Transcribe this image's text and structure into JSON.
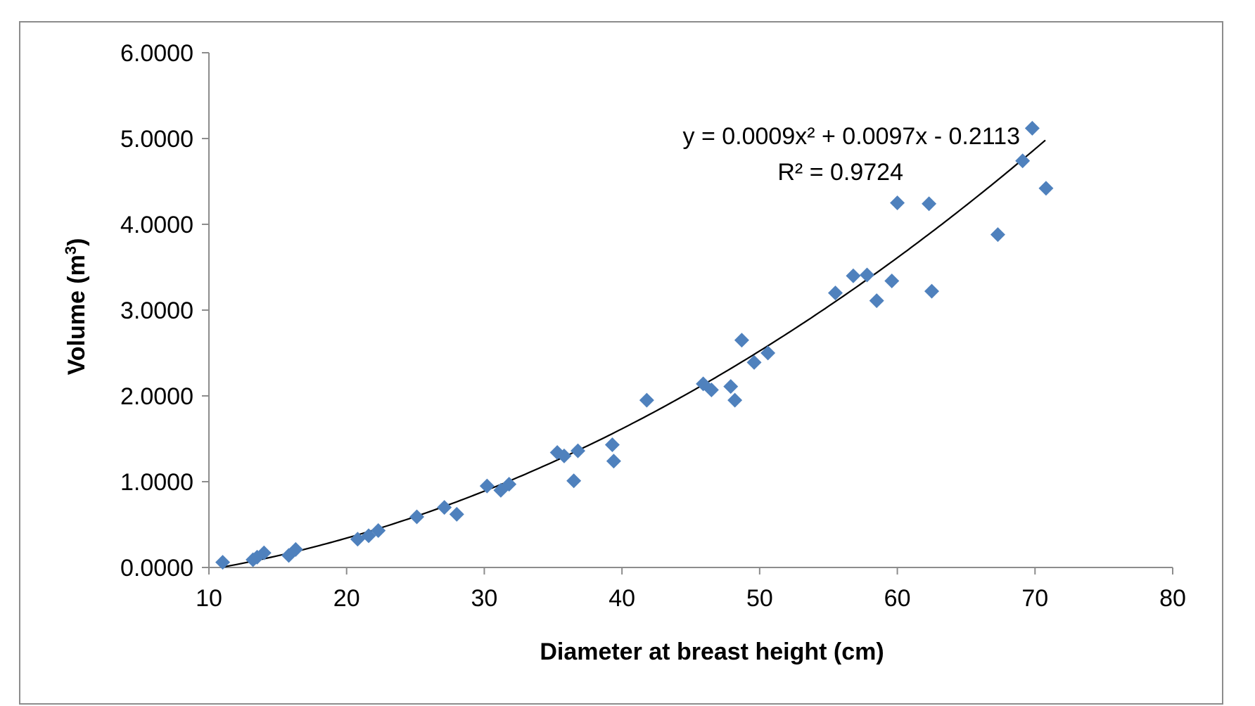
{
  "chart_data": {
    "type": "scatter",
    "xlabel": "Diameter at breast height (cm)",
    "ylabel_main": "Volume (m",
    "ylabel_sup": "3",
    "ylabel_close": ")",
    "xlim": [
      10,
      80
    ],
    "ylim": [
      0,
      6
    ],
    "x_ticks": [
      "10",
      "20",
      "30",
      "40",
      "50",
      "60",
      "70",
      "80"
    ],
    "y_ticks": [
      "0.0000",
      "1.0000",
      "2.0000",
      "3.0000",
      "4.0000",
      "5.0000",
      "6.0000"
    ],
    "grid": false,
    "legend": "none",
    "marker": "diamond",
    "marker_color": "#4f81bd",
    "trendline": {
      "type": "polynomial",
      "coefficients": {
        "a": 0.0009,
        "b": 0.0097,
        "c": -0.2113
      },
      "color": "#000000",
      "equation_label": "y = 0.0009x² + 0.0097x - 0.2113",
      "r2_label": "R² = 0.9724"
    },
    "series": [
      {
        "points": [
          [
            11.0,
            0.06
          ],
          [
            13.2,
            0.09
          ],
          [
            13.5,
            0.12
          ],
          [
            14.0,
            0.17
          ],
          [
            15.8,
            0.14
          ],
          [
            16.3,
            0.21
          ],
          [
            20.8,
            0.33
          ],
          [
            21.6,
            0.37
          ],
          [
            22.3,
            0.43
          ],
          [
            25.1,
            0.59
          ],
          [
            27.1,
            0.7
          ],
          [
            28.0,
            0.62
          ],
          [
            30.2,
            0.95
          ],
          [
            31.2,
            0.9
          ],
          [
            31.8,
            0.97
          ],
          [
            35.3,
            1.34
          ],
          [
            35.8,
            1.3
          ],
          [
            36.5,
            1.01
          ],
          [
            36.8,
            1.36
          ],
          [
            39.3,
            1.43
          ],
          [
            39.4,
            1.24
          ],
          [
            41.8,
            1.95
          ],
          [
            45.9,
            2.14
          ],
          [
            46.5,
            2.07
          ],
          [
            47.9,
            2.11
          ],
          [
            48.2,
            1.95
          ],
          [
            48.7,
            2.65
          ],
          [
            49.6,
            2.39
          ],
          [
            50.6,
            2.5
          ],
          [
            55.5,
            3.2
          ],
          [
            56.8,
            3.4
          ],
          [
            57.8,
            3.41
          ],
          [
            58.5,
            3.11
          ],
          [
            59.6,
            3.34
          ],
          [
            60.0,
            4.25
          ],
          [
            62.3,
            4.24
          ],
          [
            62.5,
            3.22
          ],
          [
            67.3,
            3.88
          ],
          [
            69.1,
            4.74
          ],
          [
            69.8,
            5.12
          ],
          [
            70.8,
            4.42
          ]
        ]
      }
    ]
  }
}
